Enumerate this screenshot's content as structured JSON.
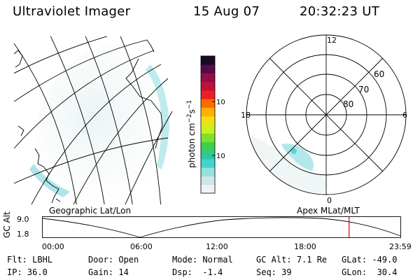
{
  "header": {
    "title": "Ultraviolet Imager",
    "date": "15 Aug 07",
    "time": "20:32:23 UT"
  },
  "colorbar": {
    "unit_prefix": "photon cm",
    "unit_exp1": "−2",
    "unit_mid": "s",
    "unit_exp2": "−1",
    "ticks": [
      {
        "label": "100",
        "value": 100
      },
      {
        "label": "10",
        "value": 10
      }
    ],
    "scale": "log",
    "colors": [
      "#f2f2f2",
      "#cde7e7",
      "#96e0e0",
      "#3fd6c8",
      "#2ec79a",
      "#3fce4e",
      "#7fe02a",
      "#c8f020",
      "#f0e010",
      "#ffb000",
      "#ff6a00",
      "#e82020",
      "#c0103a",
      "#901048",
      "#5a0a4a",
      "#1a0a2a"
    ]
  },
  "geo_panel": {
    "label": "Geographic Lat/Lon"
  },
  "polar_panel": {
    "label": "Apex MLat/MLT",
    "mlt_labels": [
      "12",
      "18",
      "6",
      "0"
    ],
    "mlat_labels": [
      "60",
      "70",
      "80"
    ]
  },
  "orbit_plot": {
    "ylabel": "GC Alt",
    "ymax_label": "9.0",
    "ymin_label": "1.8",
    "x_ticks": [
      "00:00",
      "06:00",
      "12:00",
      "18:00",
      "23:59"
    ],
    "marker_time_hours": 20.54,
    "marker_color": "#e00000"
  },
  "status": {
    "flt_key": "Flt:",
    "flt_val": "LBHL",
    "ip_key": "IP:",
    "ip_val": "36.0",
    "door_key": "Door:",
    "door_val": "Open",
    "gain_key": "Gain:",
    "gain_val": "14",
    "mode_key": "Mode:",
    "mode_val": "Normal",
    "dsp_key": "Dsp:",
    "dsp_val": "-1.4",
    "gcalt_key": "GC Alt:",
    "gcalt_val": "7.1 Re",
    "seq_key": "Seq:",
    "seq_val": "39",
    "glat_key": "GLat:",
    "glat_val": "-49.0",
    "glon_key": "GLon:",
    "glon_val": "30.4"
  }
}
